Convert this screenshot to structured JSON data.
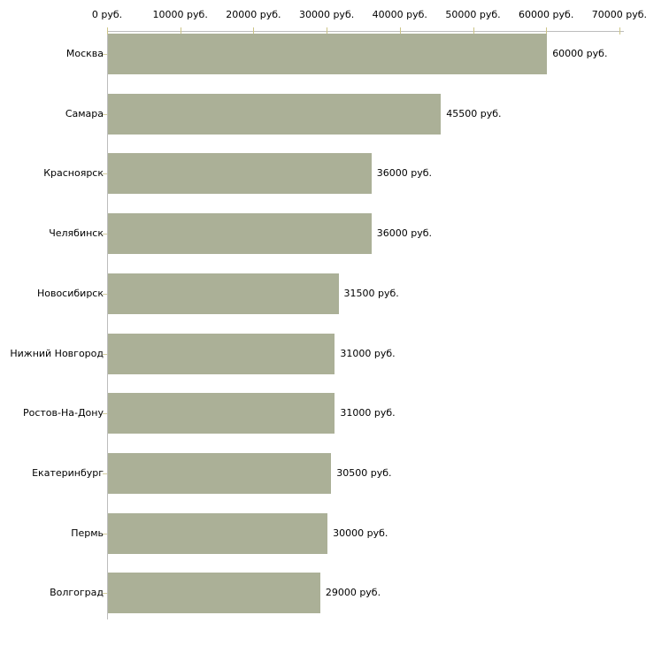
{
  "chart_data": {
    "type": "bar",
    "orientation": "horizontal",
    "title": "",
    "categories": [
      "Москва",
      "Самара",
      "Красноярск",
      "Челябинск",
      "Новосибирск",
      "Нижний Новгород",
      "Ростов-На-Дону",
      "Екатеринбург",
      "Пермь",
      "Волгоград"
    ],
    "values": [
      60000,
      45500,
      36000,
      36000,
      31500,
      31000,
      31000,
      30500,
      30000,
      29000
    ],
    "value_labels": [
      "60000 руб.",
      "45500 руб.",
      "36000 руб.",
      "36000 руб.",
      "31500 руб.",
      "31000 руб.",
      "31000 руб.",
      "30500 руб.",
      "30000 руб.",
      "29000 руб."
    ],
    "x_tick_labels": [
      "0 руб.",
      "10000 руб.",
      "20000 руб.",
      "30000 руб.",
      "40000 руб.",
      "50000 руб.",
      "60000 руб.",
      "70000 руб."
    ],
    "xlim": [
      0,
      70000
    ],
    "unit": "руб.",
    "grid": false,
    "legend": false,
    "axis_position": "top",
    "colors": {
      "bar": "#abb097",
      "axis_line": "#bdbdbd",
      "tick": "#cdc587",
      "text": "#000000",
      "background": "#ffffff"
    }
  }
}
